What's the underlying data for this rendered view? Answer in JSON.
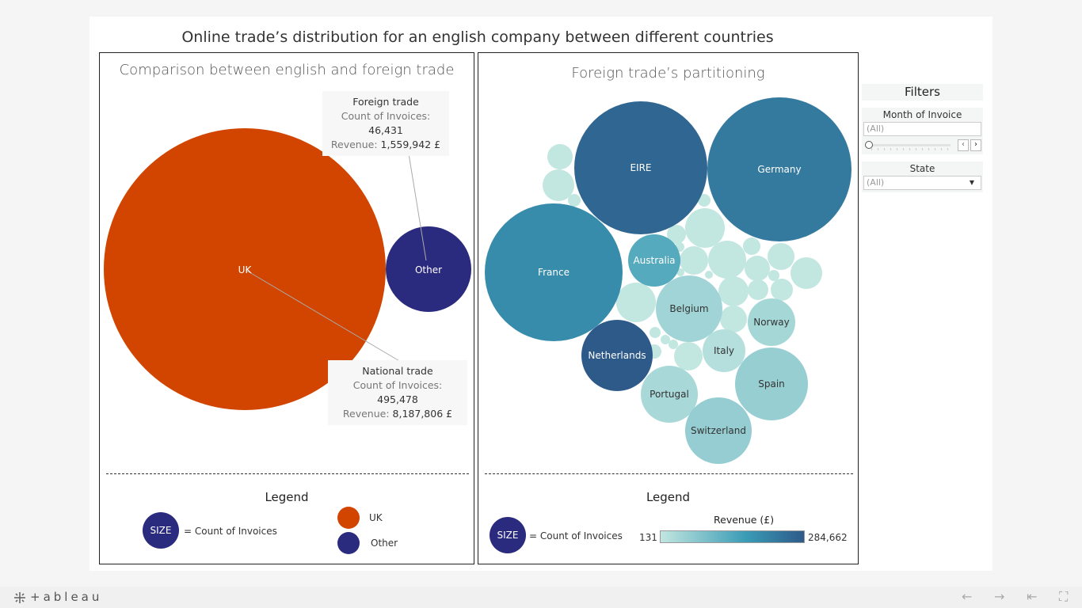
{
  "main_title": "Online trade’s distribution for an english company between different countries",
  "chart_data": [
    {
      "type": "bubble",
      "title": "Comparison between english and foreign trade",
      "size_measure": "Count of Invoices",
      "bubbles": [
        {
          "label": "UK",
          "category": "National trade",
          "count_of_invoices": 495478,
          "revenue": 8187806,
          "color": "#d14500"
        },
        {
          "label": "Other",
          "category": "Foreign trade",
          "count_of_invoices": 46431,
          "revenue": 1559942,
          "color": "#2a2a7e"
        }
      ],
      "annotations": [
        {
          "title": "Foreign trade",
          "count_label": "Count of Invoices:",
          "count": "46,431",
          "revenue_label": "Revenue:",
          "revenue": "1,559,942 £"
        },
        {
          "title": "National trade",
          "count_label": "Count of Invoices:",
          "count": "495,478",
          "revenue_label": "Revenue:",
          "revenue": "8,187,806 £"
        }
      ],
      "legend": {
        "title": "Legend",
        "size_badge": "SIZE",
        "size_text": "= Count of Invoices",
        "entries": [
          {
            "label": "UK",
            "color": "#d14500"
          },
          {
            "label": "Other",
            "color": "#2a2a7e"
          }
        ]
      }
    },
    {
      "type": "bubble",
      "title": "Foreign trade’s partitioning",
      "size_measure": "Count of Invoices",
      "color_measure": "Revenue (£)",
      "color_range": [
        131,
        284662
      ],
      "bubbles": [
        {
          "label": "Germany",
          "revenue": 228000
        },
        {
          "label": "EIRE",
          "revenue": 263000
        },
        {
          "label": "France",
          "revenue": 197000
        },
        {
          "label": "Australia",
          "revenue": 137000
        },
        {
          "label": "Netherlands",
          "revenue": 284662
        },
        {
          "label": "Belgium",
          "revenue": 41000
        },
        {
          "label": "Norway",
          "revenue": 35000
        },
        {
          "label": "Italy",
          "revenue": 17000
        },
        {
          "label": "Spain",
          "revenue": 55000
        },
        {
          "label": "Portugal",
          "revenue": 33000
        },
        {
          "label": "Switzerland",
          "revenue": 56000
        }
      ],
      "legend": {
        "title": "Legend",
        "size_badge": "SIZE",
        "size_text": "= Count of Invoices",
        "color_title": "Revenue (£)",
        "color_min": "131",
        "color_max": "284,662",
        "color_low": "#c2e6e0",
        "color_mid": "#3a9bb5",
        "color_high": "#2e5a8a"
      }
    }
  ],
  "filters": {
    "title": "Filters",
    "month_label": "Month of Invoice",
    "month_value": "(All)",
    "state_label": "State",
    "state_value": "(All)"
  },
  "footer": {
    "logo": "+ableau"
  }
}
